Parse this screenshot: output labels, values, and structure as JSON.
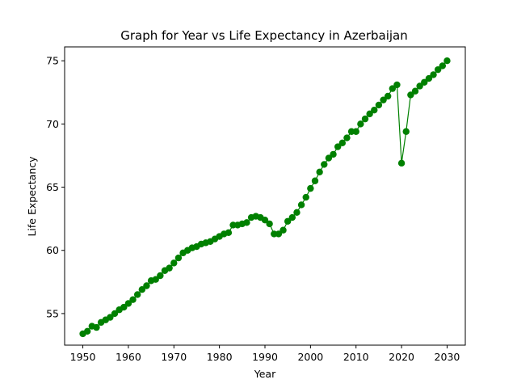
{
  "chart_data": {
    "type": "line",
    "title": "Graph for Year vs Life Expectancy in Azerbaijan",
    "xlabel": "Year",
    "ylabel": "Life Expectancy",
    "xlim": [
      1946,
      2034
    ],
    "ylim": [
      52.5,
      76.1
    ],
    "xticks": [
      1950,
      1960,
      1970,
      1980,
      1990,
      2000,
      2010,
      2020,
      2030
    ],
    "yticks": [
      55,
      60,
      65,
      70,
      75
    ],
    "grid": false,
    "legend": "none",
    "color": "#008000",
    "marker": "circle",
    "series": [
      {
        "x": [
          1950,
          1951,
          1952,
          1953,
          1954,
          1955,
          1956,
          1957,
          1958,
          1959,
          1960,
          1961,
          1962,
          1963,
          1964,
          1965,
          1966,
          1967,
          1968,
          1969,
          1970,
          1971,
          1972,
          1973,
          1974,
          1975,
          1976,
          1977,
          1978,
          1979,
          1980,
          1981,
          1982,
          1983,
          1984,
          1985,
          1986,
          1987,
          1988,
          1989,
          1990,
          1991,
          1992,
          1993,
          1994,
          1995,
          1996,
          1997,
          1998,
          1999,
          2000,
          2001,
          2002,
          2003,
          2004,
          2005,
          2006,
          2007,
          2008,
          2009,
          2010,
          2011,
          2012,
          2013,
          2014,
          2015,
          2016,
          2017,
          2018,
          2019,
          2020,
          2021,
          2022,
          2023,
          2024,
          2025,
          2026,
          2027,
          2028,
          2029,
          2030
        ],
        "y": [
          53.4,
          53.6,
          54.0,
          53.9,
          54.3,
          54.5,
          54.7,
          55.0,
          55.3,
          55.5,
          55.8,
          56.1,
          56.5,
          56.9,
          57.2,
          57.6,
          57.7,
          58.0,
          58.4,
          58.6,
          59.0,
          59.4,
          59.8,
          60.0,
          60.2,
          60.3,
          60.5,
          60.6,
          60.7,
          60.9,
          61.1,
          61.3,
          61.4,
          62.0,
          62.0,
          62.1,
          62.2,
          62.6,
          62.7,
          62.6,
          62.4,
          62.1,
          61.3,
          61.3,
          61.6,
          62.3,
          62.6,
          63.0,
          63.6,
          64.2,
          64.9,
          65.5,
          66.2,
          66.8,
          67.3,
          67.6,
          68.2,
          68.5,
          68.9,
          69.4,
          69.4,
          70.0,
          70.4,
          70.8,
          71.1,
          71.5,
          71.9,
          72.2,
          72.8,
          73.1,
          66.9,
          69.4,
          72.3,
          72.6,
          73.0,
          73.3,
          73.6,
          73.9,
          74.3,
          74.6,
          75.0
        ]
      }
    ]
  }
}
